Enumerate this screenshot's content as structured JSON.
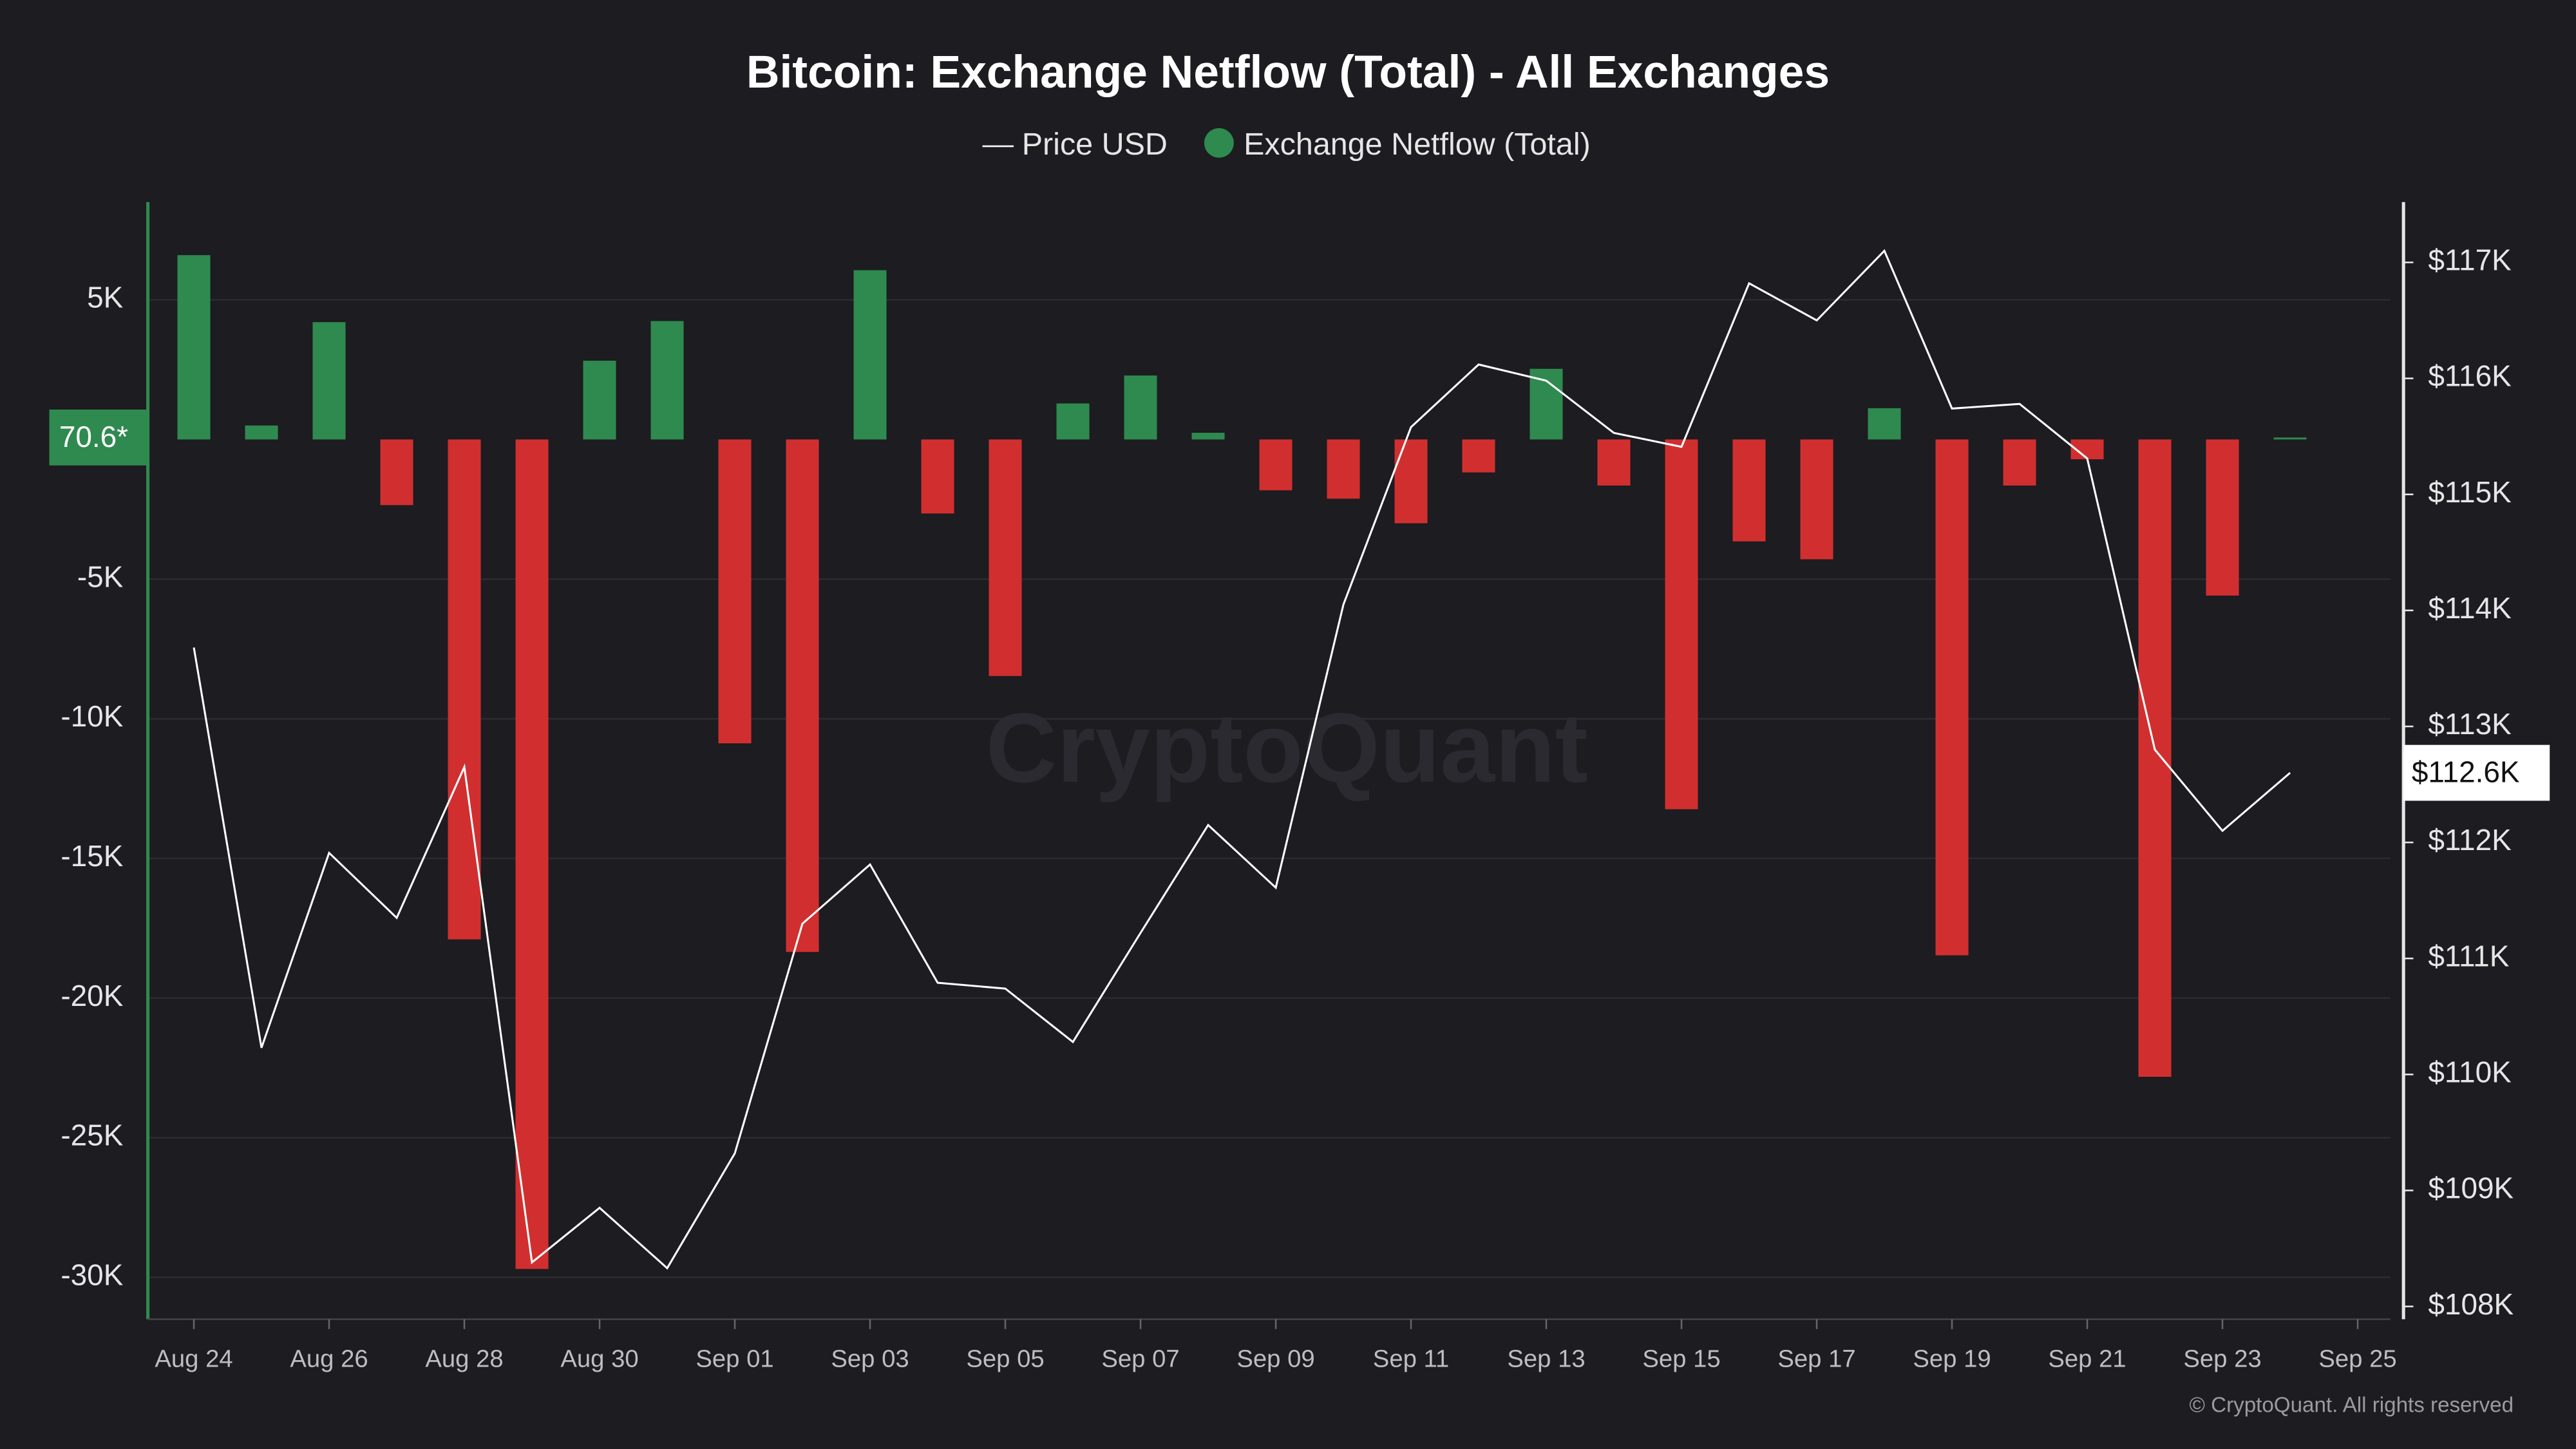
{
  "chart_data": {
    "type": "bar-line",
    "title": "Bitcoin: Exchange Netflow (Total) - All Exchanges",
    "watermark": "CryptoQuant",
    "footer": "© CryptoQuant. All rights reserved",
    "categories": [
      "Aug 24",
      null,
      "Aug 26",
      null,
      "Aug 28",
      null,
      "Aug 30",
      null,
      "Sep 01",
      null,
      "Sep 03",
      null,
      "Sep 05",
      null,
      "Sep 07",
      null,
      "Sep 09",
      null,
      "Sep 11",
      null,
      "Sep 13",
      null,
      "Sep 15",
      null,
      "Sep 17",
      null,
      "Sep 19",
      null,
      "Sep 21",
      null,
      "Sep 23",
      null,
      "Sep 25"
    ],
    "series": [
      {
        "name": "Price USD",
        "type": "line",
        "axis": "y2",
        "color": "#ffffff",
        "values": [
          113680,
          110230,
          111910,
          111350,
          112650,
          108380,
          108850,
          108330,
          109320,
          111300,
          111810,
          110790,
          110740,
          110280,
          111220,
          112150,
          111610,
          114050,
          115580,
          116120,
          115980,
          115530,
          115410,
          116820,
          116500,
          117100,
          115740,
          115780,
          115310,
          112800,
          112100,
          112600,
          null
        ],
        "value_labels": [
          null,
          null,
          null,
          null,
          null,
          null,
          null,
          null,
          null,
          null,
          null,
          null,
          null,
          null,
          null,
          null,
          null,
          null,
          null,
          null,
          null,
          null,
          null,
          null,
          null,
          null,
          null,
          null,
          null,
          null,
          null,
          "$112.6K",
          null
        ]
      },
      {
        "name": "Exchange Netflow (Total)",
        "type": "bar",
        "color": "#2f8a4f",
        "negative_color": "#d12f2f",
        "values": [
          6600,
          500,
          4200,
          -2350,
          -17900,
          -29700,
          2820,
          4240,
          -10880,
          -18350,
          6060,
          -2650,
          -8470,
          1290,
          2290,
          240,
          -1820,
          -2120,
          -3000,
          -1180,
          2530,
          -1650,
          -13240,
          -3650,
          -4290,
          1120,
          -18470,
          -1650,
          -710,
          -22820,
          -5590,
          70.6,
          null
        ],
        "value_labels": [
          null,
          null,
          null,
          null,
          null,
          null,
          null,
          null,
          null,
          null,
          null,
          null,
          null,
          null,
          null,
          null,
          null,
          null,
          null,
          null,
          null,
          null,
          null,
          null,
          null,
          null,
          null,
          null,
          null,
          null,
          null,
          "70.6*",
          null
        ]
      }
    ],
    "ylim": [
      -31500,
      8500
    ],
    "yticks": [
      {
        "value": 5000,
        "label": "5K"
      },
      {
        "value": -5000,
        "label": "-5K"
      },
      {
        "value": -10000,
        "label": "-10K"
      },
      {
        "value": -15000,
        "label": "-15K"
      },
      {
        "value": -20000,
        "label": "-20K"
      },
      {
        "value": -25000,
        "label": "-25K"
      },
      {
        "value": -30000,
        "label": "-30K"
      }
    ],
    "y2lim": [
      107890,
      117520
    ],
    "y2ticks": [
      {
        "value": 108000,
        "label": "$108K"
      },
      {
        "value": 109000,
        "label": "$109K"
      },
      {
        "value": 110000,
        "label": "$110K"
      },
      {
        "value": 111000,
        "label": "$111K"
      },
      {
        "value": 112000,
        "label": "$112K"
      },
      {
        "value": 113000,
        "label": "$113K"
      },
      {
        "value": 114000,
        "label": "$114K"
      },
      {
        "value": 115000,
        "label": "$115K"
      },
      {
        "value": 116000,
        "label": "$116K"
      },
      {
        "value": 117000,
        "label": "$117K"
      }
    ],
    "grid": true,
    "legend": "top"
  }
}
